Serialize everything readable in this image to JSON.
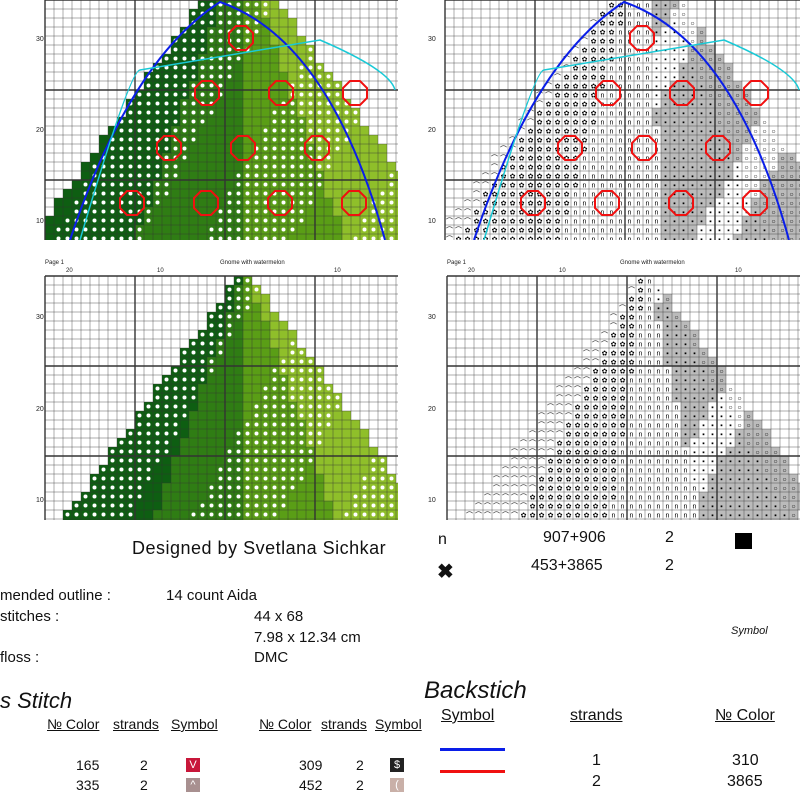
{
  "chart_labels": {
    "page": "Page 1",
    "title": "Gnome with watermelon",
    "y_ticks": [
      "30",
      "20",
      "10"
    ],
    "x_ticks": [
      "20",
      "10",
      "10"
    ]
  },
  "designer": "Designed by Svetlana Sichkar",
  "info": [
    {
      "label": "mended outline :",
      "value": "14 count Aida"
    },
    {
      "label": "stitches :",
      "value": "44 x 68"
    },
    {
      "label": "",
      "value": "7.98 x 12.34 cm"
    },
    {
      "label": "floss :",
      "value": "DMC"
    }
  ],
  "cross_stitch": {
    "heading": "s Stitch",
    "headers": [
      "№ Color",
      "strands",
      "Symbol"
    ],
    "col1": [
      {
        "color": "165",
        "strands": "2",
        "symbol": "V",
        "bg": "#c8173a"
      },
      {
        "color": "335",
        "strands": "2",
        "symbol": "^",
        "bg": "#a89090"
      }
    ],
    "col2": [
      {
        "color": "309",
        "strands": "2",
        "symbol": "$",
        "bg": "#222222"
      },
      {
        "color": "452",
        "strands": "2",
        "symbol": "(",
        "bg": "#c9b0a8"
      }
    ]
  },
  "blends": [
    {
      "symbol": "n",
      "color": "907+906",
      "strands": "2"
    },
    {
      "symbol": "✖",
      "color": "453+3865",
      "strands": "2"
    }
  ],
  "symbol_caption": "Symbol",
  "backstitch": {
    "heading": "Backstich",
    "headers": [
      "Symbol",
      "strands",
      "№ Color"
    ],
    "rows": [
      {
        "line": "#0a1ee8",
        "strands": "1",
        "color": "310"
      },
      {
        "line": "#f01010",
        "strands": "2",
        "color": "3865"
      }
    ]
  }
}
